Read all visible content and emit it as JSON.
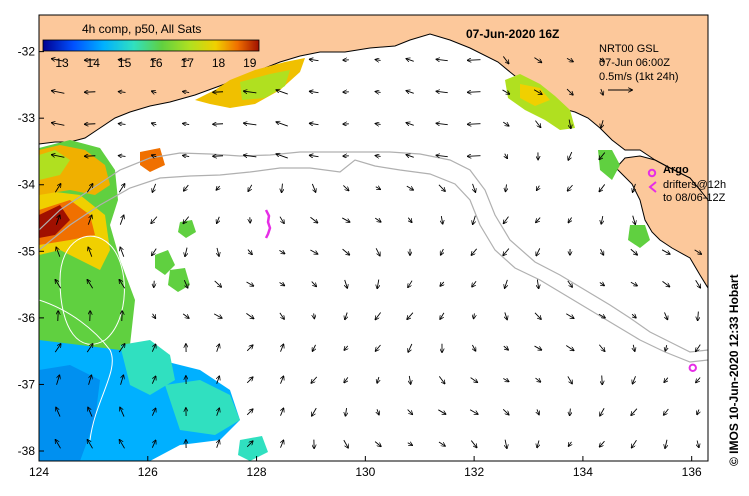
{
  "product": {
    "date_title": "07-Jun-2020 16Z",
    "sst_title": "4h comp, p50, All Sats",
    "colorbar_ticks": [
      "13",
      "14",
      "15",
      "16",
      "17",
      "18",
      "19"
    ],
    "model_line1": "NRT00 GSL",
    "model_line2": "07-Jun 06:00Z",
    "scale_label": "0.5m/s (1kt 24h)",
    "argo_label": "Argo",
    "drifters_line1": "drifters@12h",
    "drifters_line2": "to 08/06-12Z",
    "credit": "© IMOS 10-Jun-2020 12:33 Hobart"
  },
  "axes": {
    "x_ticks": [
      "124",
      "126",
      "128",
      "130",
      "132",
      "134",
      "136"
    ],
    "y_ticks": [
      "-32",
      "-33",
      "-34",
      "-35",
      "-36",
      "-37",
      "-38"
    ],
    "lon_range": [
      124,
      136.3
    ],
    "lat_range": [
      -38.15,
      -31.45
    ]
  },
  "colors": {
    "land": "#fcc89b",
    "argo": "#e62ee6",
    "contour": "#b0b0b0",
    "arrow": "#000000",
    "colormap": [
      "#000090",
      "#0050ff",
      "#00b0ff",
      "#30e0c0",
      "#60d040",
      "#b0e020",
      "#f0d000",
      "#f07000",
      "#a01000"
    ]
  },
  "argo_floats": [
    {
      "lon": 136.02,
      "lat": -36.75
    }
  ]
}
